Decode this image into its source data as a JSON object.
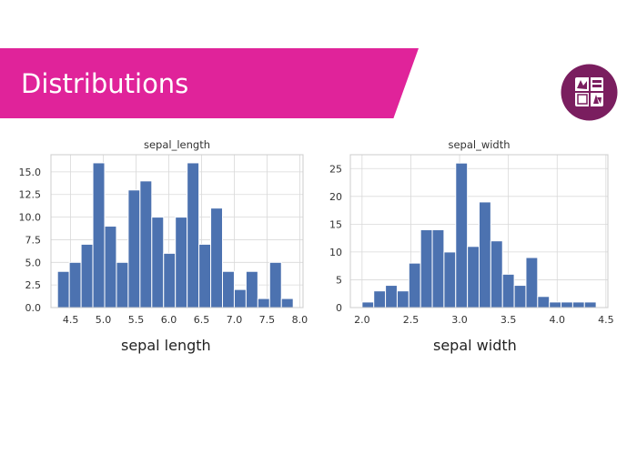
{
  "slide": {
    "title": "Distributions",
    "accent_color": "#e0239a",
    "logo_icon": "university-crest-icon",
    "logo_color": "#7a1e5f"
  },
  "captions": [
    "sepal length",
    "sepal width"
  ],
  "chart_data": [
    {
      "type": "bar",
      "title": "sepal_length",
      "xlabel": "",
      "ylabel": "",
      "bar_color": "#4c72b0",
      "grid": true,
      "bin_start": 4.3,
      "bin_width": 0.18,
      "values": [
        4,
        5,
        7,
        16,
        9,
        5,
        13,
        14,
        10,
        6,
        10,
        16,
        7,
        11,
        4,
        2,
        4,
        1,
        5,
        1
      ],
      "xlim": [
        4.2,
        8.05
      ],
      "ylim": [
        0,
        16.9
      ],
      "xticks": [
        4.5,
        5.0,
        5.5,
        6.0,
        6.5,
        7.0,
        7.5,
        8.0
      ],
      "xtick_labels": [
        "4.5",
        "5.0",
        "5.5",
        "6.0",
        "6.5",
        "7.0",
        "7.5",
        "8.0"
      ],
      "yticks": [
        0,
        2.5,
        5,
        7.5,
        10,
        12.5,
        15
      ],
      "ytick_labels": [
        "0.0",
        "2.5",
        "5.0",
        "7.5",
        "10.0",
        "12.5",
        "15.0"
      ]
    },
    {
      "type": "bar",
      "title": "sepal_width",
      "xlabel": "",
      "ylabel": "",
      "bar_color": "#4c72b0",
      "grid": true,
      "bin_start": 2.0,
      "bin_width": 0.12,
      "values": [
        1,
        3,
        4,
        3,
        8,
        14,
        14,
        10,
        26,
        11,
        19,
        12,
        6,
        4,
        9,
        2,
        1,
        1,
        1,
        1
      ],
      "xlim": [
        1.88,
        4.52
      ],
      "ylim": [
        0,
        27.5
      ],
      "xticks": [
        2.0,
        2.5,
        3.0,
        3.5,
        4.0,
        4.5
      ],
      "xtick_labels": [
        "2.0",
        "2.5",
        "3.0",
        "3.5",
        "4.0",
        "4.5"
      ],
      "yticks": [
        0,
        5,
        10,
        15,
        20,
        25
      ],
      "ytick_labels": [
        "0",
        "5",
        "10",
        "15",
        "20",
        "25"
      ]
    }
  ]
}
